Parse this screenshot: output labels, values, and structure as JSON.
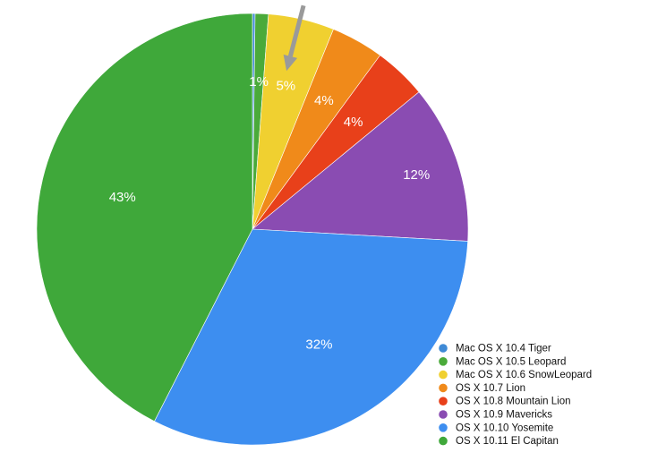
{
  "chart_data": {
    "type": "pie",
    "labels": [
      "Mac OS X 10.4 Tiger",
      "Mac OS X 10.5 Leopard",
      "Mac OS X 10.6 SnowLeopard",
      "OS X 10.7 Lion",
      "OS X 10.8 Mountain Lion",
      "OS X 10.9 Mavericks",
      "OS X 10.10 Yosemite",
      "OS X 10.11 El Capitan"
    ],
    "values": [
      0.2,
      1,
      5,
      4,
      4,
      12,
      32,
      43
    ],
    "data_labels": [
      "",
      "1%",
      "5%",
      "4%",
      "4%",
      "12%",
      "32%",
      "43%"
    ],
    "colors": [
      "#3f8ad6",
      "#4aaa3a",
      "#f0d030",
      "#f08a1a",
      "#e8401a",
      "#8a4cb2",
      "#3d8ef0",
      "#3fa83a"
    ],
    "start_angle": "12 o'clock",
    "direction": "clockwise",
    "legend_position": "bottom-right",
    "annotation": {
      "type": "arrow",
      "color": "#9a9a9a",
      "points_to": "Mac OS X 10.6 SnowLeopard"
    }
  }
}
